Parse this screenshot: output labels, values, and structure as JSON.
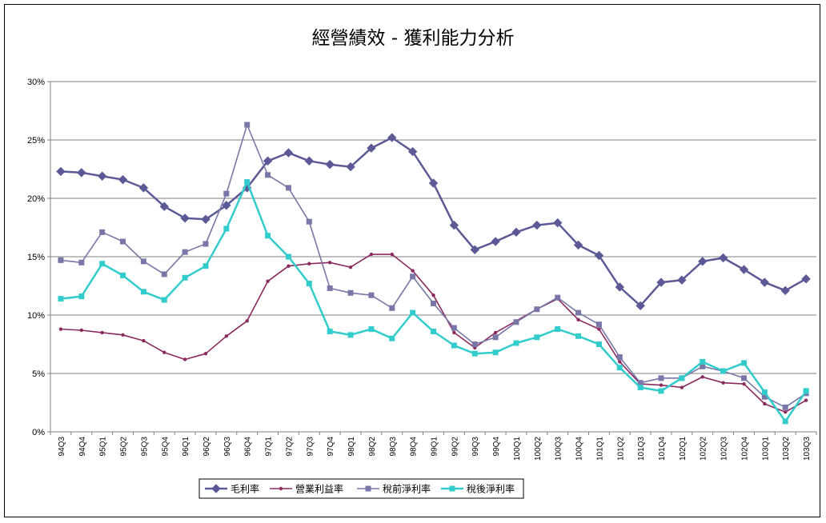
{
  "chart_data": {
    "type": "line",
    "title": "經營績效 - 獲利能力分析",
    "xlabel": "",
    "ylabel": "",
    "ylim": [
      0,
      30
    ],
    "y_ticks": [
      "0%",
      "5%",
      "10%",
      "15%",
      "20%",
      "25%",
      "30%"
    ],
    "grid": "horizontal",
    "legend_position": "bottom",
    "categories": [
      "94Q3",
      "94Q4",
      "95Q1",
      "95Q2",
      "95Q3",
      "95Q4",
      "96Q1",
      "96Q2",
      "96Q3",
      "96Q4",
      "97Q1",
      "97Q2",
      "97Q3",
      "97Q4",
      "98Q1",
      "98Q2",
      "98Q3",
      "98Q4",
      "99Q1",
      "99Q2",
      "99Q3",
      "99Q4",
      "100Q1",
      "100Q2",
      "100Q3",
      "100Q4",
      "101Q1",
      "101Q2",
      "101Q3",
      "101Q4",
      "102Q1",
      "102Q2",
      "102Q3",
      "102Q4",
      "103Q1",
      "103Q2",
      "103Q3"
    ],
    "series": [
      {
        "name": "毛利率",
        "color": "#5b5a96",
        "marker": "diamond",
        "values": [
          22.3,
          22.2,
          21.9,
          21.6,
          20.9,
          19.3,
          18.3,
          18.2,
          19.4,
          20.9,
          23.2,
          23.9,
          23.2,
          22.9,
          22.7,
          24.3,
          25.2,
          24.0,
          21.3,
          17.7,
          15.6,
          16.3,
          17.1,
          17.7,
          17.9,
          16.0,
          15.1,
          12.4,
          10.8,
          12.8,
          13.0,
          14.6,
          14.9,
          13.9,
          12.8,
          12.1,
          13.1
        ]
      },
      {
        "name": "營業利益率",
        "color": "#8a2a5e",
        "marker": "dot",
        "values": [
          8.8,
          8.7,
          8.5,
          8.3,
          7.8,
          6.8,
          6.2,
          6.7,
          8.2,
          9.5,
          12.9,
          14.2,
          14.4,
          14.5,
          14.1,
          15.2,
          15.2,
          13.8,
          11.7,
          8.5,
          7.2,
          8.5,
          9.5,
          10.5,
          11.4,
          9.6,
          8.8,
          6.0,
          4.1,
          4.0,
          3.8,
          4.7,
          4.2,
          4.1,
          2.4,
          1.7,
          2.7
        ]
      },
      {
        "name": "稅前淨利率",
        "color": "#7877a8",
        "marker": "square",
        "values": [
          14.7,
          14.5,
          17.1,
          16.3,
          14.6,
          13.5,
          15.4,
          16.1,
          20.4,
          26.3,
          22.0,
          20.9,
          18.0,
          12.3,
          11.9,
          11.7,
          10.6,
          13.3,
          11.0,
          8.9,
          7.5,
          8.1,
          9.4,
          10.5,
          11.5,
          10.2,
          9.2,
          6.4,
          4.2,
          4.6,
          4.6,
          5.6,
          5.2,
          4.6,
          3.0,
          2.1,
          3.3
        ]
      },
      {
        "name": "稅後淨利率",
        "color": "#33cccc",
        "marker": "square",
        "values": [
          11.4,
          11.6,
          14.4,
          13.4,
          12.0,
          11.3,
          13.2,
          14.2,
          17.4,
          21.4,
          16.8,
          15.0,
          12.7,
          8.6,
          8.3,
          8.8,
          8.0,
          10.2,
          8.6,
          7.4,
          6.7,
          6.8,
          7.6,
          8.1,
          8.8,
          8.2,
          7.5,
          5.5,
          3.8,
          3.5,
          4.6,
          6.0,
          5.2,
          5.9,
          3.4,
          0.9,
          3.5
        ]
      }
    ]
  }
}
